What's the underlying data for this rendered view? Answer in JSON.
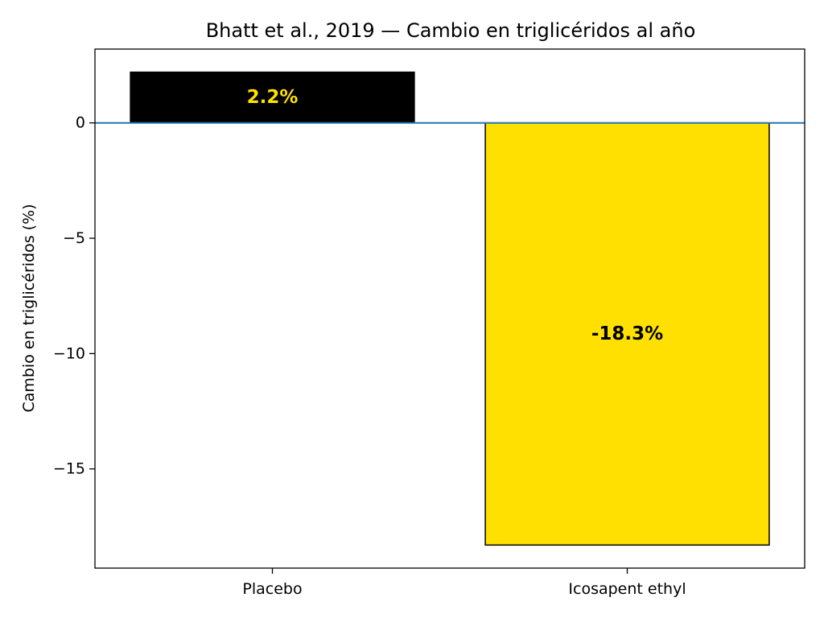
{
  "chart_data": {
    "type": "bar",
    "title": "Bhatt et al., 2019 — Cambio en triglicéridos al año",
    "xlabel": "",
    "ylabel": "Cambio en triglicéridos (%)",
    "categories": [
      "Placebo",
      "Icosapent ethyl"
    ],
    "values": [
      2.2,
      -18.3
    ],
    "data_labels": [
      "2.2%",
      "-18.3%"
    ],
    "ylim": [
      -19.3,
      3.2
    ],
    "yticks": [
      0,
      -5,
      -10,
      -15
    ],
    "ytick_labels": [
      "0",
      "−5",
      "−10",
      "−15"
    ],
    "grid": false,
    "legend": "none",
    "zero_line": true,
    "colors": {
      "bars": [
        "#000000",
        "#ffe000"
      ],
      "bar_edge": "#000000",
      "data_labels": [
        "#ffe000",
        "#000000"
      ],
      "zero_line": "#1f77b4",
      "axes": "#000000"
    }
  }
}
